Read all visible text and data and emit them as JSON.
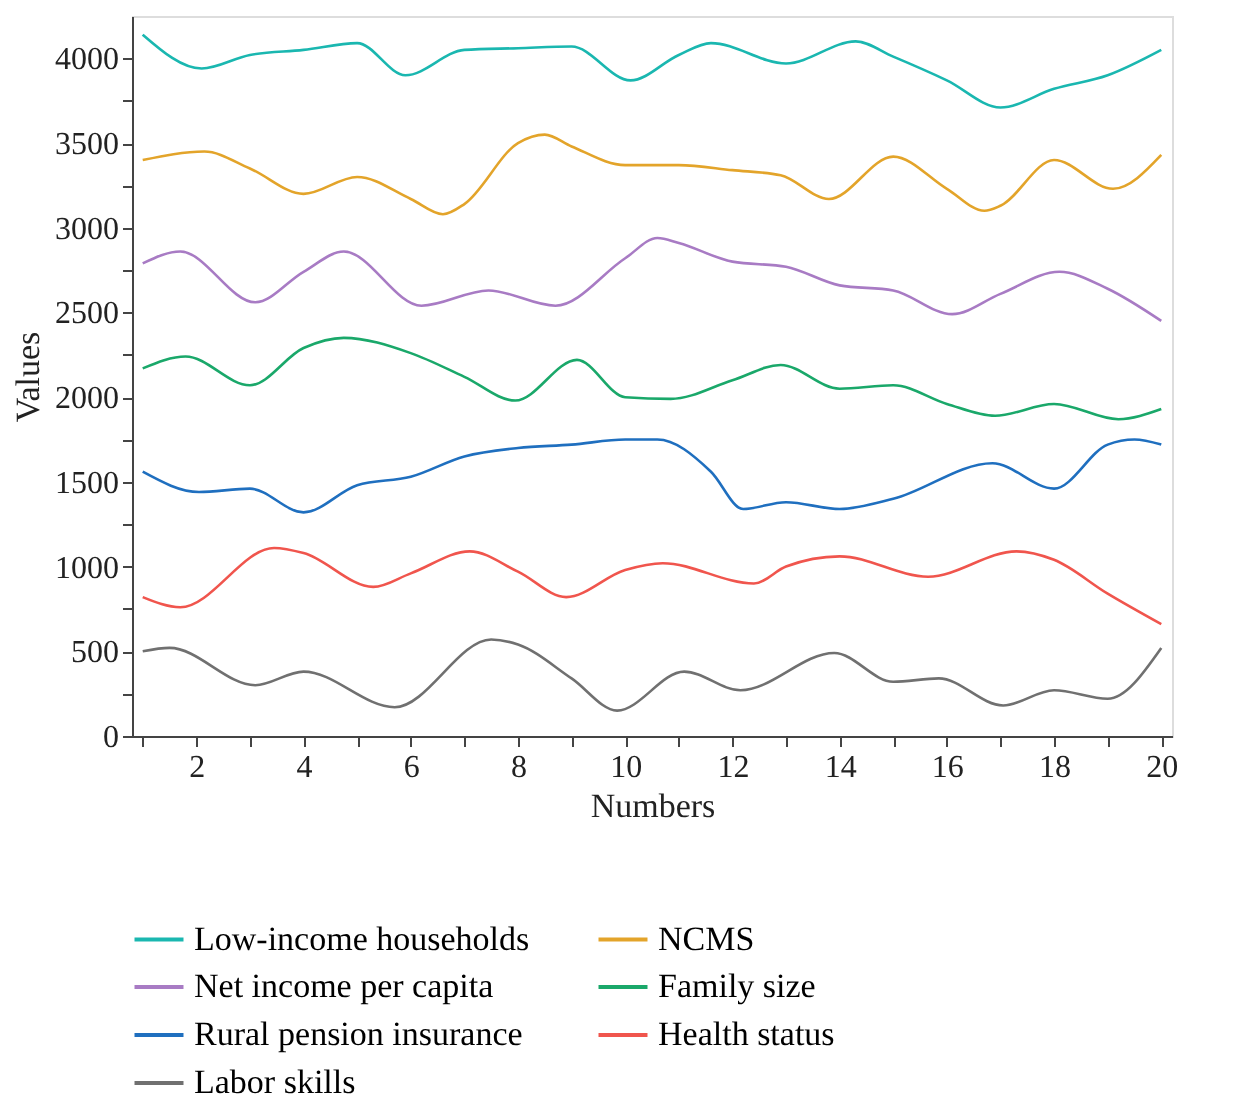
{
  "chart_data": {
    "type": "line",
    "xlabel": "Numbers",
    "ylabel": "Values",
    "xlim": [
      0.8,
      20.2
    ],
    "ylim": [
      0,
      4250
    ],
    "xticks": [
      {
        "value": 1,
        "label": null
      },
      2,
      {
        "value": 3,
        "label": null
      },
      4,
      {
        "value": 5,
        "label": null
      },
      6,
      {
        "value": 7,
        "label": null
      },
      8,
      {
        "value": 9,
        "label": null
      },
      10,
      {
        "value": 11,
        "label": null
      },
      12,
      {
        "value": 13,
        "label": null
      },
      14,
      {
        "value": 15,
        "label": null
      },
      16,
      {
        "value": 17,
        "label": null
      },
      18,
      {
        "value": 19,
        "label": null
      },
      20
    ],
    "yticks": [
      0,
      {
        "value": 250,
        "label": null
      },
      500,
      {
        "value": 750,
        "label": null
      },
      1000,
      {
        "value": 1250,
        "label": null
      },
      1500,
      {
        "value": 1750,
        "label": null
      },
      2000,
      {
        "value": 2250,
        "label": null
      },
      2500,
      {
        "value": 2750,
        "label": null
      },
      3000,
      {
        "value": 3250,
        "label": null
      },
      3500,
      {
        "value": 3750,
        "label": null
      },
      4000
    ],
    "grid": false,
    "legend": "bottom",
    "marker": "none",
    "line_style": "solid",
    "series": [
      {
        "name": "Low-income households",
        "color": "#1ab7b0",
        "x": [
          1,
          2.1,
          3,
          4,
          5,
          5.9,
          7,
          8,
          9,
          10.1,
          11,
          11.6,
          13,
          14.3,
          15,
          16,
          17,
          18,
          19,
          20
        ],
        "values": [
          4140,
          3940,
          4020,
          4050,
          4090,
          3900,
          4050,
          4060,
          4070,
          3870,
          4020,
          4090,
          3970,
          4100,
          4010,
          3870,
          3710,
          3820,
          3900,
          4050
        ]
      },
      {
        "name": "NCMS",
        "color": "#e3a42a",
        "x": [
          1,
          2.15,
          3,
          4,
          5,
          6,
          6.6,
          7,
          8,
          8.5,
          9,
          10,
          11,
          12,
          12.9,
          13.8,
          15,
          16,
          16.7,
          17,
          18,
          19.1,
          20
        ],
        "values": [
          3400,
          3450,
          3350,
          3200,
          3300,
          3170,
          3080,
          3140,
          3500,
          3550,
          3480,
          3370,
          3370,
          3340,
          3310,
          3170,
          3420,
          3230,
          3100,
          3130,
          3400,
          3230,
          3430
        ]
      },
      {
        "name": "Net income per capita",
        "color": "#a87bc4",
        "x": [
          1,
          1.7,
          3.1,
          4,
          4.75,
          6.2,
          7.45,
          8.7,
          10,
          10.6,
          11,
          12,
          13,
          14,
          15,
          16.1,
          17,
          18.1,
          19,
          20
        ],
        "values": [
          2790,
          2860,
          2560,
          2740,
          2860,
          2540,
          2630,
          2540,
          2820,
          2940,
          2910,
          2800,
          2770,
          2660,
          2630,
          2490,
          2610,
          2740,
          2640,
          2450
        ]
      },
      {
        "name": "Family size",
        "color": "#1aa86a",
        "x": [
          1,
          1.8,
          3,
          4,
          4.75,
          6,
          7,
          7.95,
          9.1,
          10,
          10.85,
          12,
          12.9,
          14,
          15,
          16,
          16.9,
          18,
          19.2,
          20
        ],
        "values": [
          2170,
          2240,
          2070,
          2290,
          2350,
          2260,
          2120,
          1980,
          2220,
          2000,
          1990,
          2100,
          2190,
          2050,
          2070,
          1960,
          1890,
          1960,
          1870,
          1930
        ]
      },
      {
        "name": "Rural pension insurance",
        "color": "#1f6fbf",
        "x": [
          1,
          2.05,
          3,
          4,
          5,
          6,
          7,
          8,
          9,
          10,
          10.6,
          11.6,
          12.2,
          13,
          14,
          15,
          16.85,
          18,
          19,
          19.5,
          20
        ],
        "values": [
          1560,
          1440,
          1460,
          1320,
          1480,
          1530,
          1650,
          1700,
          1720,
          1750,
          1750,
          1560,
          1340,
          1380,
          1340,
          1400,
          1610,
          1460,
          1720,
          1750,
          1720
        ]
      },
      {
        "name": "Health status",
        "color": "#f0554d",
        "x": [
          1,
          1.7,
          3.45,
          4,
          5.3,
          6,
          7.1,
          8,
          8.9,
          10,
          10.7,
          12.4,
          13,
          14,
          15.65,
          17.3,
          18,
          19,
          20
        ],
        "values": [
          820,
          760,
          1110,
          1080,
          880,
          960,
          1090,
          970,
          820,
          980,
          1020,
          900,
          1000,
          1060,
          940,
          1090,
          1040,
          840,
          660
        ]
      },
      {
        "name": "Labor skills",
        "color": "#707070",
        "x": [
          1,
          1.5,
          3.1,
          4,
          5.7,
          7.5,
          8,
          9,
          9.85,
          11.1,
          12.15,
          13.9,
          15,
          15.85,
          17.05,
          18,
          19,
          20
        ],
        "values": [
          500,
          520,
          300,
          380,
          170,
          570,
          540,
          340,
          150,
          380,
          270,
          490,
          320,
          340,
          180,
          270,
          220,
          520
        ]
      }
    ]
  }
}
